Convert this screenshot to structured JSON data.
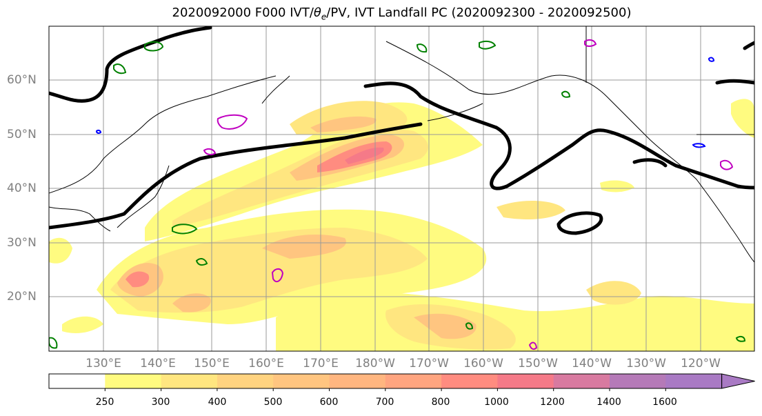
{
  "title": {
    "prefix": "2020092000 F000 IVT/",
    "theta": "θ",
    "theta_sub": "e",
    "suffix": "/PV, IVT Landfall PC (2020092300 - 2020092500)"
  },
  "lat_ticks": [
    "60°N",
    "50°N",
    "40°N",
    "30°N",
    "20°N"
  ],
  "lon_ticks": [
    "130°E",
    "140°E",
    "150°E",
    "160°E",
    "170°E",
    "180°W",
    "170°W",
    "160°W",
    "150°W",
    "140°W",
    "130°W",
    "120°W"
  ],
  "colorbar": {
    "labels": [
      "250",
      "300",
      "400",
      "500",
      "600",
      "700",
      "800",
      "1000",
      "1200",
      "1400",
      "1600"
    ],
    "colors": [
      "#ffffff",
      "#fffb80",
      "#ffe680",
      "#ffd380",
      "#ffc580",
      "#ffb680",
      "#ffa580",
      "#ff8c80",
      "#f57a88",
      "#d87aa0",
      "#b57ab8",
      "#a97ac4"
    ]
  },
  "legend_colors": {
    "landfall_contour": "#000000",
    "pv_contour": "#008000",
    "theta_e_contour": "#c000c0",
    "minor_contour": "#0000ff"
  }
}
